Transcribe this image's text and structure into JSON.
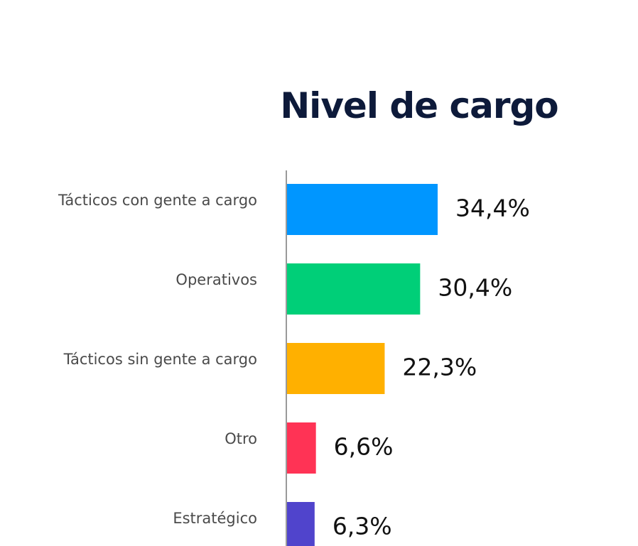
{
  "chart_data": {
    "type": "bar",
    "orientation": "horizontal",
    "title": "Nivel de cargo",
    "categories": [
      "Tácticos con gente a cargo",
      "Operativos",
      "Tácticos sin gente a cargo",
      "Otro",
      "Estratégico"
    ],
    "values": [
      34.4,
      30.4,
      22.3,
      6.6,
      6.3
    ],
    "value_labels": [
      "34,4%",
      "30,4%",
      "22,3%",
      "6,6%",
      "6,3%"
    ],
    "colors": [
      "#0096ff",
      "#00cf78",
      "#ffb000",
      "#ff3355",
      "#5044cc"
    ],
    "unit": "%",
    "grid": false,
    "legend": "none"
  }
}
